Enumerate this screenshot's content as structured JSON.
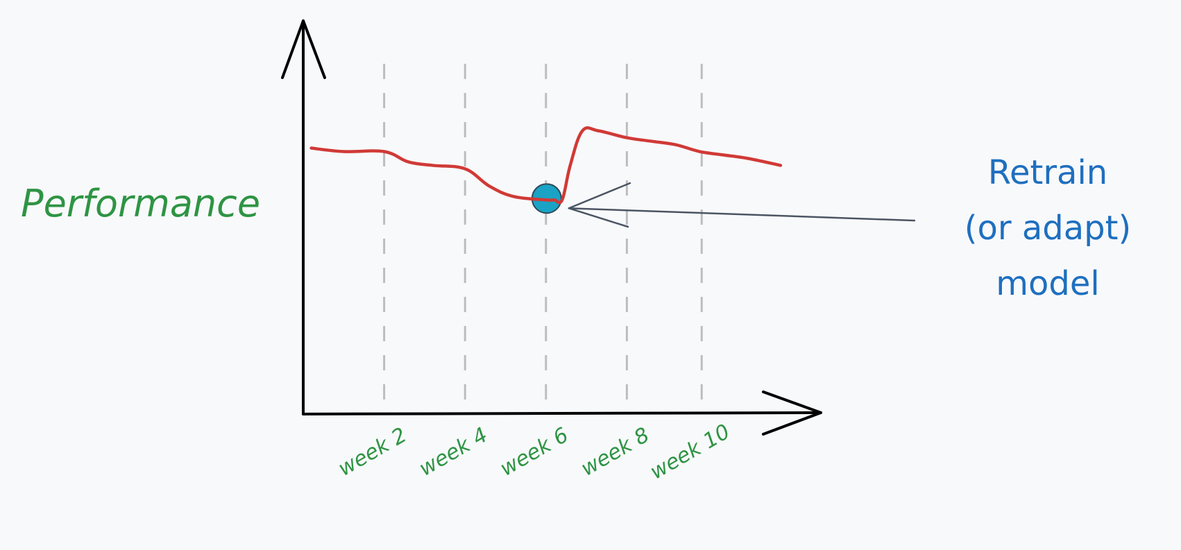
{
  "chart_data": {
    "type": "line",
    "ylabel": "Performance",
    "xlabel": "",
    "categories": [
      "week 2",
      "week 4",
      "week 6",
      "week 8",
      "week 10"
    ],
    "x_range": [
      0,
      12
    ],
    "y_range": [
      0,
      100
    ],
    "series": [
      {
        "x": [
          0.2,
          1.0,
          2.0,
          2.6,
          3.2,
          4.0,
          4.6,
          5.2,
          6.0,
          6.2,
          6.4,
          6.6,
          6.9,
          7.3,
          8.0,
          8.6,
          9.2,
          9.8,
          10.4,
          11.0,
          11.8
        ],
        "values": [
          77,
          76,
          76,
          73,
          72,
          71,
          66,
          63,
          62,
          62,
          62,
          72,
          82,
          82,
          80,
          79,
          78,
          76,
          75,
          74,
          72
        ]
      }
    ],
    "grid": {
      "x_dashed": true
    },
    "colors": {
      "line": "#d03a36",
      "axis": "#000000",
      "grid": "#bdbdbd",
      "label": "#2e9444",
      "marker": "#1aa3c5",
      "annotation": "#1e6fbf",
      "arrow": "#4b5563"
    },
    "annotation": {
      "lines": [
        "Retrain",
        "(or adapt)",
        "model"
      ],
      "target_x": 6.0,
      "target_y": 62
    }
  }
}
